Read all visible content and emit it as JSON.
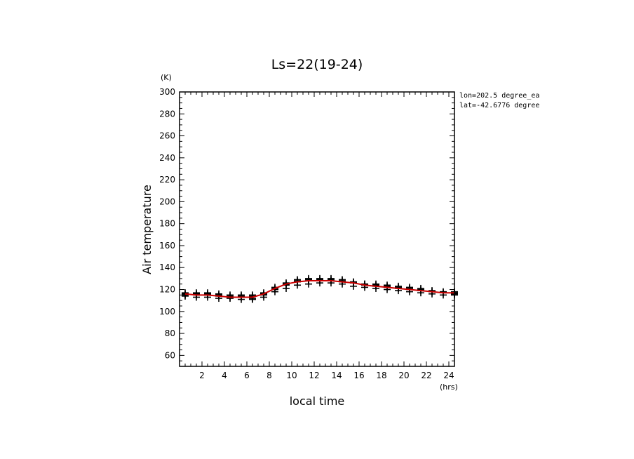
{
  "chart_data": {
    "type": "line",
    "title": "Ls=22(19-24)",
    "xlabel": "local time",
    "ylabel": "Air temperature",
    "x_unit": "(hrs)",
    "y_unit": "(K)",
    "xlim": [
      0,
      24.5
    ],
    "ylim": [
      50,
      300
    ],
    "x_ticks": [
      2,
      4,
      6,
      8,
      10,
      12,
      14,
      16,
      18,
      20,
      22,
      24
    ],
    "y_ticks": [
      60,
      80,
      100,
      120,
      140,
      160,
      180,
      200,
      220,
      240,
      260,
      280,
      300
    ],
    "annotations": [
      "lon=202.5 degree_ea",
      "lat=-42.6776 degree"
    ],
    "grid": false,
    "line_color": "#cc0000",
    "marker_color": "#000000",
    "x": [
      0.5,
      1.5,
      2.5,
      3.5,
      4.5,
      5.5,
      6.5,
      7.5,
      8.5,
      9.5,
      10.5,
      11.5,
      12.5,
      13.5,
      14.5,
      15.5,
      16.5,
      17.5,
      18.5,
      19.5,
      20.5,
      21.5,
      22.5,
      23.5,
      24.5
    ],
    "series": [
      {
        "type": "line",
        "values": [
          116,
          115,
          115,
          114,
          113,
          113,
          113,
          116,
          121,
          125,
          127,
          128,
          128,
          128,
          127,
          126,
          124,
          123,
          122,
          121,
          120,
          119,
          118,
          117,
          117
        ]
      },
      {
        "type": "markers",
        "values": [
          117,
          117,
          117,
          116,
          115,
          115,
          115,
          117,
          122,
          126,
          129,
          130,
          130,
          130,
          129,
          127,
          125,
          125,
          124,
          123,
          122,
          121,
          119,
          118,
          118
        ]
      },
      {
        "type": "markers",
        "values": [
          116,
          116,
          116,
          115,
          114,
          114,
          114,
          116,
          121,
          125,
          128,
          129,
          129,
          129,
          128,
          126,
          125,
          124,
          123,
          122,
          121,
          120,
          118,
          117,
          117
        ]
      },
      {
        "type": "markers",
        "values": [
          115,
          115,
          115,
          114,
          113,
          113,
          112,
          115,
          120,
          124,
          127,
          128,
          128,
          128,
          127,
          126,
          124,
          123,
          122,
          121,
          120,
          119,
          118,
          117,
          116
        ]
      },
      {
        "type": "markers",
        "values": [
          114,
          113,
          113,
          112,
          112,
          111,
          111,
          113,
          118,
          121,
          124,
          125,
          126,
          126,
          125,
          123,
          122,
          121,
          120,
          119,
          118,
          117,
          116,
          115,
          115
        ]
      }
    ]
  }
}
